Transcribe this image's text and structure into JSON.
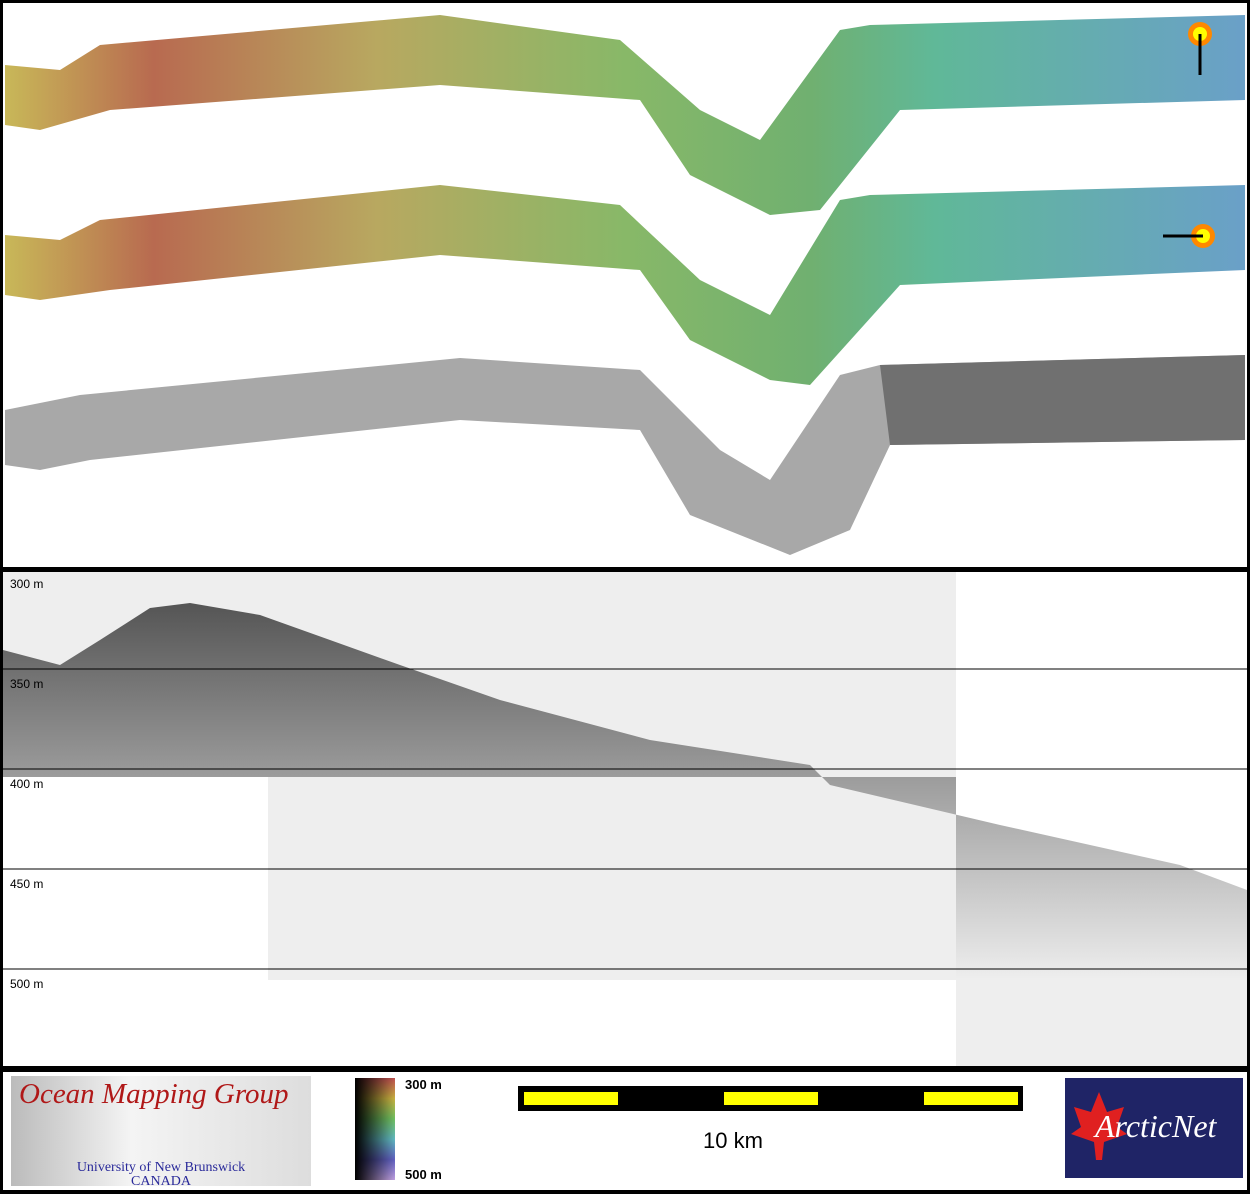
{
  "profile": {
    "depth_labels": [
      "300 m",
      "350 m",
      "400 m",
      "450 m",
      "500 m"
    ]
  },
  "legend": {
    "logo_left": {
      "title": "Ocean Mapping Group",
      "line1": "University of New Brunswick",
      "line2": "CANADA"
    },
    "colorbar": {
      "top_label": "300 m",
      "bottom_label": "500 m",
      "colors": [
        "#c05050",
        "#c8b040",
        "#70c060",
        "#60b8c0",
        "#6060c0",
        "#c0a0e0"
      ]
    },
    "scalebar": {
      "label": "10 km",
      "colors": [
        "#000000",
        "#ffff00"
      ]
    },
    "logo_right": {
      "text": "ArcticNet"
    }
  }
}
